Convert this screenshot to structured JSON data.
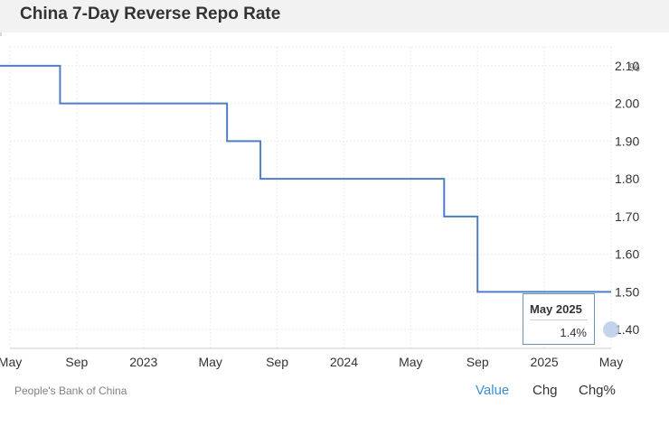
{
  "header": {
    "title": "China 7-Day Reverse Repo Rate"
  },
  "source": "People's Bank of China",
  "tabs": [
    {
      "label": "Value",
      "active": true
    },
    {
      "label": "Chg",
      "active": false
    },
    {
      "label": "Chg%",
      "active": false
    }
  ],
  "tooltip": {
    "date": "May 2025",
    "value": "1.4%"
  },
  "colors": {
    "line": "#4f7fc0",
    "active_tab": "#3d8fd6",
    "marker": "#b8cde9"
  },
  "chart_data": {
    "type": "line",
    "step": true,
    "title": "China 7-Day Reverse Repo Rate",
    "unit_label": "%",
    "y_axis_side": "right",
    "ylim": [
      1.35,
      2.15
    ],
    "yticks": [
      1.4,
      1.5,
      1.6,
      1.7,
      1.8,
      1.9,
      2.0,
      2.1
    ],
    "ytick_labels": [
      "1.40",
      "1.50",
      "1.60",
      "1.70",
      "1.80",
      "1.90",
      "2.00",
      "2.10"
    ],
    "xlim": [
      "2022-05",
      "2025-05"
    ],
    "xticks": [
      "2022-05",
      "2022-09",
      "2023-01",
      "2023-05",
      "2023-09",
      "2024-01",
      "2024-05",
      "2024-09",
      "2025-01",
      "2025-05"
    ],
    "xtick_labels": [
      "May",
      "Sep",
      "2023",
      "May",
      "Sep",
      "2024",
      "May",
      "Sep",
      "2025",
      "May"
    ],
    "grid": true,
    "series": [
      {
        "x": [
          "2022-05",
          "2022-06",
          "2022-07",
          "2022-08",
          "2022-09",
          "2022-10",
          "2022-11",
          "2022-12",
          "2023-01",
          "2023-02",
          "2023-03",
          "2023-04",
          "2023-05",
          "2023-06",
          "2023-07",
          "2023-08",
          "2023-09",
          "2023-10",
          "2023-11",
          "2023-12",
          "2024-01",
          "2024-02",
          "2024-03",
          "2024-04",
          "2024-05",
          "2024-06",
          "2024-07",
          "2024-08",
          "2024-09",
          "2024-10",
          "2024-11",
          "2024-12",
          "2025-01",
          "2025-02",
          "2025-03",
          "2025-04",
          "2025-05"
        ],
        "values": [
          2.1,
          2.1,
          2.1,
          2.0,
          2.0,
          2.0,
          2.0,
          2.0,
          2.0,
          2.0,
          2.0,
          2.0,
          2.0,
          1.9,
          1.9,
          1.8,
          1.8,
          1.8,
          1.8,
          1.8,
          1.8,
          1.8,
          1.8,
          1.8,
          1.8,
          1.8,
          1.7,
          1.7,
          1.5,
          1.5,
          1.5,
          1.5,
          1.5,
          1.5,
          1.5,
          1.5,
          1.4
        ]
      }
    ],
    "highlight": {
      "x": "2025-05",
      "y": 1.4
    }
  }
}
